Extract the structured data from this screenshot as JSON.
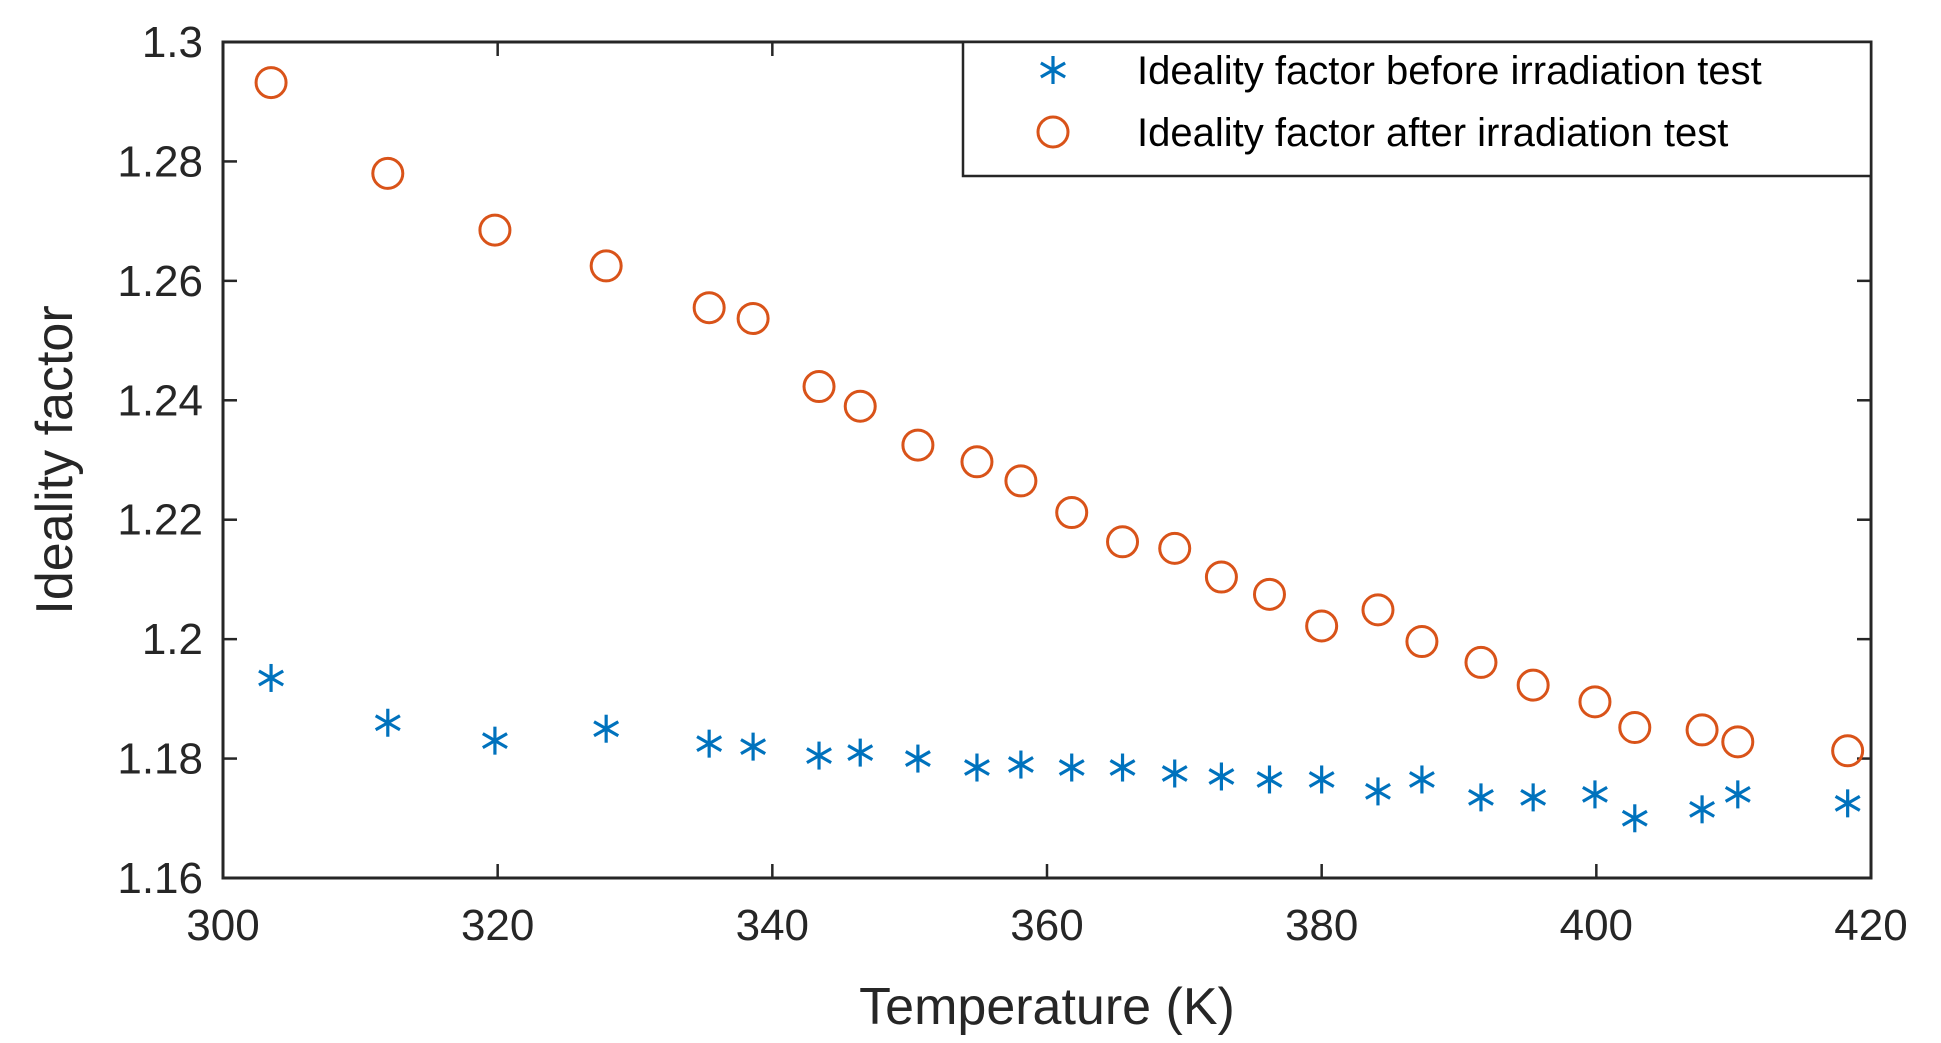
{
  "chart_data": {
    "type": "scatter",
    "title": "",
    "xlabel": "Temperature (K)",
    "ylabel": "Ideality factor",
    "xlim": [
      300,
      420
    ],
    "ylim": [
      1.16,
      1.3
    ],
    "xticks": [
      300,
      320,
      340,
      360,
      380,
      400,
      420
    ],
    "yticks": [
      1.16,
      1.18,
      1.2,
      1.22,
      1.24,
      1.26,
      1.28,
      1.3
    ],
    "xtick_labels": [
      "300",
      "320",
      "340",
      "360",
      "380",
      "400",
      "420"
    ],
    "ytick_labels": [
      "1.16",
      "1.18",
      "1.2",
      "1.22",
      "1.24",
      "1.26",
      "1.28",
      "1.3"
    ],
    "grid": false,
    "legend_position": "top-right",
    "series": [
      {
        "name": "Ideality factor before irradiation test",
        "marker": "asterisk",
        "color": "#0072BD",
        "x": [
          303.5,
          312,
          319.8,
          327.9,
          335.4,
          338.6,
          343.4,
          346.4,
          350.6,
          354.9,
          358.1,
          361.8,
          365.5,
          369.3,
          372.7,
          376.2,
          380,
          384.1,
          387.3,
          391.6,
          395.4,
          399.9,
          402.8,
          407.7,
          410.3,
          418.3
        ],
        "y": [
          1.1935,
          1.186,
          1.183,
          1.185,
          1.1825,
          1.182,
          1.1805,
          1.181,
          1.18,
          1.1785,
          1.179,
          1.1785,
          1.1785,
          1.1775,
          1.177,
          1.1765,
          1.1765,
          1.1745,
          1.1765,
          1.1735,
          1.1735,
          1.174,
          1.17,
          1.1715,
          1.174,
          1.1725
        ]
      },
      {
        "name": "Ideality factor after irradiation test",
        "marker": "circle",
        "color": "#D95319",
        "x": [
          303.5,
          312,
          319.8,
          327.9,
          335.4,
          338.6,
          343.4,
          346.4,
          350.6,
          354.9,
          358.1,
          361.8,
          365.5,
          369.3,
          372.7,
          376.2,
          380,
          384.1,
          387.3,
          391.6,
          395.4,
          399.9,
          402.8,
          407.7,
          410.3,
          418.3
        ],
        "y": [
          1.2932,
          1.278,
          1.2685,
          1.2625,
          1.2555,
          1.2537,
          1.2423,
          1.239,
          1.2325,
          1.2297,
          1.2265,
          1.2212,
          1.2163,
          1.2152,
          1.2104,
          1.2075,
          1.2022,
          1.2049,
          1.1996,
          1.1961,
          1.1923,
          1.1895,
          1.1852,
          1.1848,
          1.1828,
          1.1813
        ]
      }
    ]
  }
}
